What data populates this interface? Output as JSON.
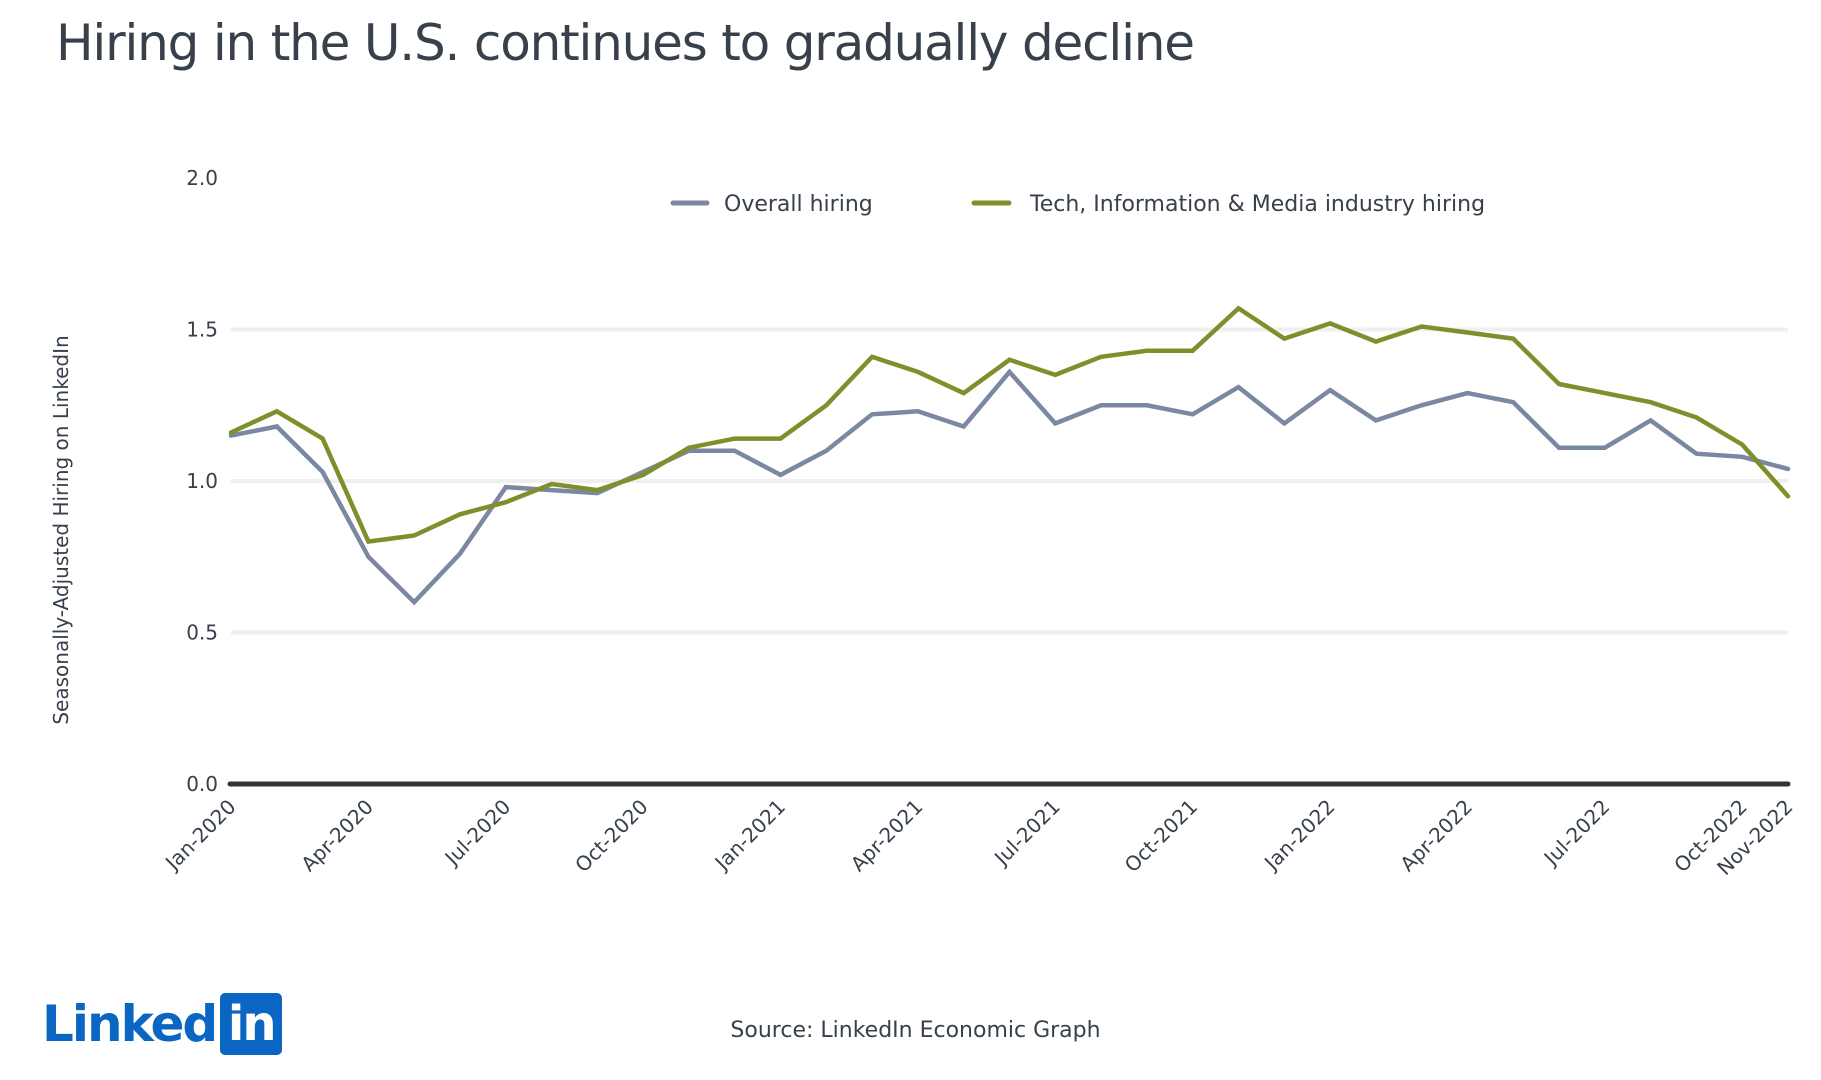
{
  "page": {
    "title": "Hiring in the U.S. continues to gradually decline",
    "source": "Source: LinkedIn Economic Graph",
    "logo": {
      "word": "Linked",
      "box": "in",
      "brand_color": "#0a66c2"
    }
  },
  "chart_data": {
    "type": "line",
    "title": "Hiring in the U.S. continues to gradually decline",
    "xlabel": "",
    "ylabel": "Seasonally-Adjusted Hiring on LinkedIn",
    "ylim": [
      0,
      2.0
    ],
    "yticks": [
      0.0,
      0.5,
      1.0,
      1.5,
      2.0
    ],
    "ytick_labels": [
      "0.0",
      "0.5",
      "1.0",
      "1.5",
      "2.0"
    ],
    "grid": true,
    "legend_position": "top-center",
    "x": [
      "Jan-2020",
      "Feb-2020",
      "Mar-2020",
      "Apr-2020",
      "May-2020",
      "Jun-2020",
      "Jul-2020",
      "Aug-2020",
      "Sep-2020",
      "Oct-2020",
      "Nov-2020",
      "Dec-2020",
      "Jan-2021",
      "Feb-2021",
      "Mar-2021",
      "Apr-2021",
      "May-2021",
      "Jun-2021",
      "Jul-2021",
      "Aug-2021",
      "Sep-2021",
      "Oct-2021",
      "Nov-2021",
      "Dec-2021",
      "Jan-2022",
      "Feb-2022",
      "Mar-2022",
      "Apr-2022",
      "May-2022",
      "Jun-2022",
      "Jul-2022",
      "Aug-2022",
      "Sep-2022",
      "Oct-2022",
      "Nov-2022"
    ],
    "xtick_labels": [
      {
        "index": 0,
        "label": "Jan-2020"
      },
      {
        "index": 3,
        "label": "Apr-2020"
      },
      {
        "index": 6,
        "label": "Jul-2020"
      },
      {
        "index": 9,
        "label": "Oct-2020"
      },
      {
        "index": 12,
        "label": "Jan-2021"
      },
      {
        "index": 15,
        "label": "Apr-2021"
      },
      {
        "index": 18,
        "label": "Jul-2021"
      },
      {
        "index": 21,
        "label": "Oct-2021"
      },
      {
        "index": 24,
        "label": "Jan-2022"
      },
      {
        "index": 27,
        "label": "Apr-2022"
      },
      {
        "index": 30,
        "label": "Jul-2022"
      },
      {
        "index": 33,
        "label": "Oct-2022"
      },
      {
        "index": 34,
        "label": "Nov-2022"
      }
    ],
    "series": [
      {
        "name": "Overall hiring",
        "color": "#7b88a1",
        "values": [
          1.15,
          1.18,
          1.03,
          0.75,
          0.6,
          0.76,
          0.98,
          0.97,
          0.96,
          1.03,
          1.1,
          1.1,
          1.02,
          1.1,
          1.22,
          1.23,
          1.18,
          1.36,
          1.19,
          1.25,
          1.25,
          1.22,
          1.31,
          1.19,
          1.3,
          1.2,
          1.25,
          1.29,
          1.26,
          1.11,
          1.11,
          1.2,
          1.09,
          1.08,
          1.04
        ]
      },
      {
        "name": "Tech, Information & Media industry hiring",
        "color": "#7f8f2c",
        "values": [
          1.16,
          1.23,
          1.14,
          0.8,
          0.82,
          0.89,
          0.93,
          0.99,
          0.97,
          1.02,
          1.11,
          1.14,
          1.14,
          1.25,
          1.41,
          1.36,
          1.29,
          1.4,
          1.35,
          1.41,
          1.43,
          1.43,
          1.57,
          1.47,
          1.52,
          1.46,
          1.51,
          1.49,
          1.47,
          1.32,
          1.29,
          1.26,
          1.21,
          1.12,
          0.95
        ]
      }
    ]
  }
}
